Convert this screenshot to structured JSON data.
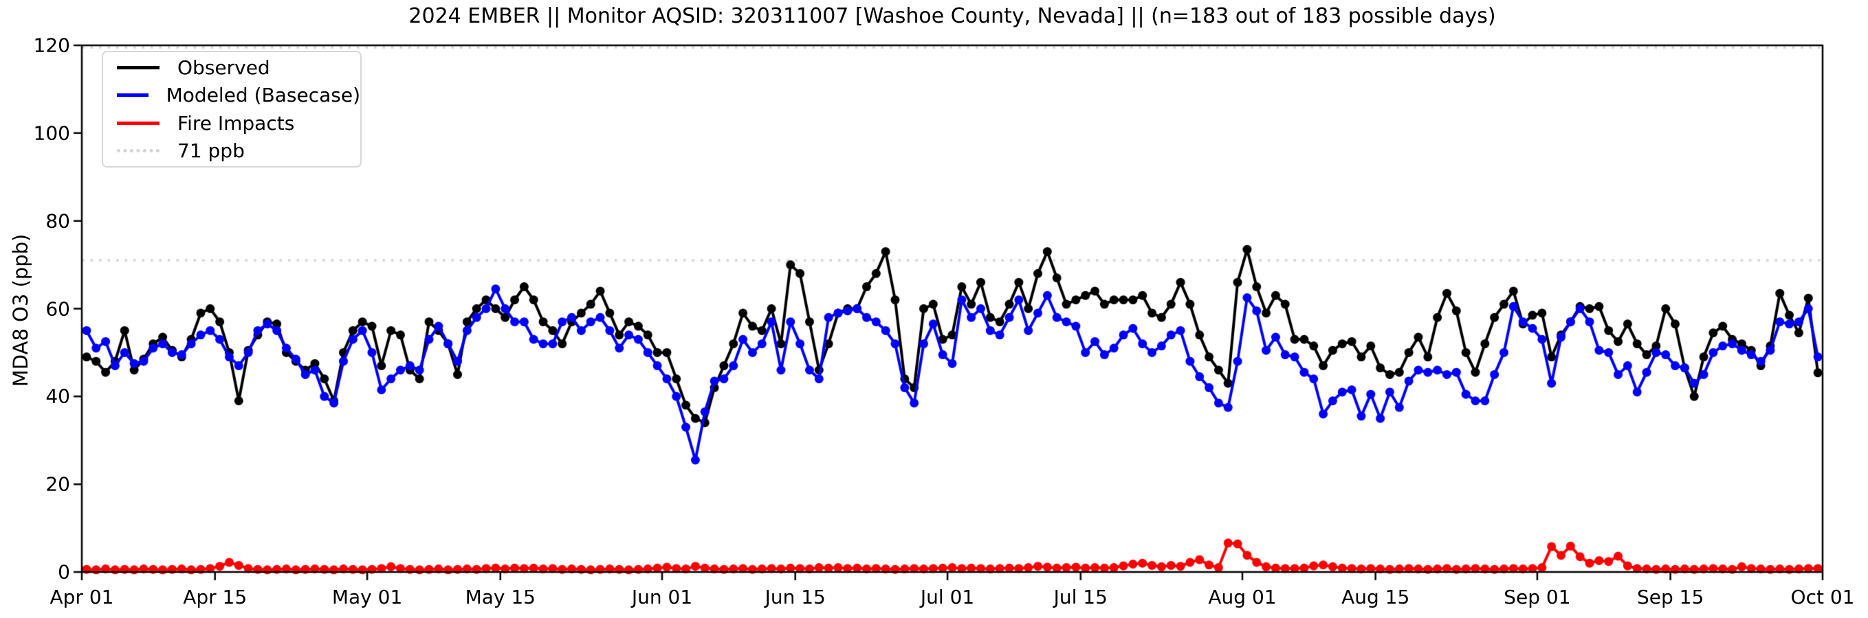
{
  "chart_data": {
    "type": "line",
    "title": "2024 EMBER || Monitor AQSID: 320311007 [Washoe County, Nevada] || (n=183 out of 183 possible days)",
    "ylabel": "MDA8 O3 (ppb)",
    "xlabel": "",
    "ylim": [
      0,
      120
    ],
    "n_days": 183,
    "x_range": [
      "Apr 01",
      "Oct 01"
    ],
    "grid": false,
    "y_ticks": [
      0,
      20,
      40,
      60,
      80,
      100,
      120
    ],
    "x_ticks": [
      {
        "day": 0,
        "label": "Apr 01"
      },
      {
        "day": 14,
        "label": "Apr 15"
      },
      {
        "day": 30,
        "label": "May 01"
      },
      {
        "day": 44,
        "label": "May 15"
      },
      {
        "day": 61,
        "label": "Jun 01"
      },
      {
        "day": 75,
        "label": "Jun 15"
      },
      {
        "day": 91,
        "label": "Jul 01"
      },
      {
        "day": 105,
        "label": "Jul 15"
      },
      {
        "day": 122,
        "label": "Aug 01"
      },
      {
        "day": 136,
        "label": "Aug 15"
      },
      {
        "day": 153,
        "label": "Sep 01"
      },
      {
        "day": 167,
        "label": "Sep 15"
      },
      {
        "day": 183,
        "label": "Oct 01"
      }
    ],
    "reference_lines": [
      {
        "value": 71,
        "label": "71 ppb",
        "color": "#d3d3d3",
        "style": "dotted"
      },
      {
        "value": 119.5,
        "label": "",
        "color": "#d3d3d3",
        "style": "dotted"
      }
    ],
    "series": [
      {
        "name": "Observed",
        "color": "#000000",
        "marker": "circle",
        "values": [
          49,
          48,
          45.5,
          48,
          55,
          46,
          48.5,
          52,
          53.5,
          50.5,
          49,
          53,
          59,
          60,
          57,
          50,
          39,
          50.5,
          54,
          57,
          56.5,
          50,
          48,
          46,
          47.5,
          44,
          39,
          50,
          55,
          57,
          56,
          47,
          55,
          54,
          46,
          44,
          57,
          55,
          52,
          45,
          57,
          60,
          62,
          60,
          58,
          62,
          65,
          62,
          57,
          55,
          52,
          57,
          59,
          61,
          64,
          59,
          54,
          57,
          56,
          54,
          50,
          50,
          44,
          38,
          35,
          34,
          42,
          47,
          52,
          59,
          56,
          55,
          60,
          52,
          70,
          68,
          57,
          46,
          52,
          59,
          60,
          60,
          65,
          68,
          73,
          62,
          44,
          42,
          60,
          61,
          53,
          54,
          65,
          61,
          66,
          58,
          57,
          61,
          66,
          60,
          68,
          73,
          67,
          61,
          62,
          63,
          64,
          61,
          62,
          62,
          62,
          63,
          59,
          58,
          61,
          66,
          61,
          54,
          49,
          46,
          43,
          66,
          73.5,
          65,
          59,
          63,
          61,
          53,
          53,
          51.5,
          47,
          50.5,
          52,
          52.5,
          49,
          51.5,
          46.5,
          45,
          45.5,
          50,
          53.5,
          49,
          58,
          63.5,
          59.5,
          50,
          45.5,
          52,
          58,
          61,
          64,
          56.5,
          58.5,
          59,
          49,
          54,
          57,
          60.5,
          60,
          60.5,
          55,
          52.5,
          56.5,
          52,
          49.5,
          51.5,
          60,
          56.5,
          46.5,
          40,
          49,
          54.5,
          56,
          53,
          52,
          50.5,
          47,
          51.5,
          63.5,
          58.5,
          54.5,
          62.4,
          45.4
        ]
      },
      {
        "name": "Modeled (Basecase)",
        "color": "#0000ff",
        "marker": "circle",
        "values": [
          55,
          51,
          52.5,
          47,
          50,
          47.5,
          48,
          51,
          52,
          50,
          49.5,
          52,
          54,
          55,
          53,
          49,
          47,
          50,
          55,
          56.5,
          55,
          51,
          48.5,
          45,
          46,
          40,
          38.5,
          48,
          53,
          55,
          50,
          41.5,
          44,
          46,
          47,
          46,
          53,
          56,
          52,
          48,
          55,
          58,
          60,
          64.5,
          60,
          57,
          57,
          53,
          52,
          52,
          57,
          58,
          55,
          57,
          58,
          55,
          51,
          54,
          53,
          50,
          47,
          44,
          40,
          33,
          25.5,
          36.5,
          43.5,
          44,
          47,
          53,
          50,
          52,
          57,
          46,
          57,
          52,
          46,
          44,
          58,
          59,
          59.5,
          60,
          58,
          57,
          55,
          52,
          42,
          38.5,
          52,
          56.5,
          49.5,
          47.5,
          62,
          58,
          60,
          55,
          54,
          58,
          62,
          55,
          59,
          63,
          58,
          57,
          56,
          50,
          52.5,
          49.5,
          51,
          54,
          55.5,
          52,
          50,
          51.5,
          54,
          55,
          48,
          44.5,
          42,
          38.5,
          37.5,
          48,
          62.5,
          59.5,
          50.5,
          53.5,
          49.5,
          49,
          45.5,
          44,
          36,
          39,
          41,
          41.5,
          35.5,
          40.5,
          35,
          41,
          37.5,
          43.5,
          46,
          45.5,
          46,
          45,
          45.5,
          40.5,
          39,
          39,
          45,
          50,
          60.5,
          57,
          55.5,
          53,
          43,
          53.5,
          57,
          60,
          57,
          50.5,
          50,
          45,
          47,
          41,
          45.5,
          50,
          49.5,
          47,
          46.5,
          43,
          45,
          50,
          51.5,
          52,
          50.5,
          49.5,
          48,
          50.5,
          57,
          56.5,
          57,
          60,
          49
        ]
      },
      {
        "name": "Fire Impacts",
        "color": "#ff0000",
        "marker": "circle",
        "values": [
          0.6,
          0.5,
          0.7,
          0.5,
          0.6,
          0.5,
          0.7,
          0.6,
          0.5,
          0.6,
          0.7,
          0.5,
          0.6,
          0.8,
          1.3,
          2.2,
          1.5,
          0.8,
          0.6,
          0.5,
          0.6,
          0.7,
          0.5,
          0.6,
          0.7,
          0.6,
          0.5,
          0.7,
          0.6,
          0.5,
          0.6,
          0.8,
          1.2,
          0.8,
          0.6,
          0.5,
          0.6,
          0.7,
          0.5,
          0.6,
          0.7,
          0.6,
          0.8,
          0.9,
          0.7,
          0.9,
          0.8,
          0.9,
          0.7,
          0.8,
          0.6,
          0.7,
          0.6,
          0.5,
          0.6,
          0.7,
          0.6,
          0.5,
          0.6,
          0.7,
          0.9,
          1.1,
          0.8,
          0.7,
          1.3,
          0.9,
          0.7,
          0.6,
          0.7,
          0.8,
          0.6,
          0.7,
          0.8,
          0.7,
          0.9,
          0.8,
          0.7,
          1.0,
          0.9,
          1.0,
          0.8,
          0.9,
          0.7,
          0.8,
          0.7,
          0.6,
          0.7,
          0.8,
          0.7,
          0.8,
          0.9,
          1.0,
          0.8,
          0.9,
          0.8,
          0.7,
          0.8,
          0.9,
          0.8,
          1.0,
          1.3,
          1.1,
          0.9,
          1.0,
          1.1,
          0.9,
          1.0,
          0.9,
          1.0,
          1.4,
          1.8,
          2.0,
          1.5,
          1.2,
          1.5,
          1.3,
          2.2,
          2.8,
          1.6,
          1.0,
          6.6,
          6.4,
          3.8,
          2.2,
          1.2,
          0.9,
          0.8,
          0.8,
          0.9,
          1.4,
          1.6,
          1.2,
          0.9,
          0.8,
          0.7,
          0.8,
          0.7,
          0.6,
          0.7,
          0.8,
          0.7,
          0.6,
          0.7,
          0.8,
          0.6,
          0.7,
          0.8,
          0.7,
          0.6,
          0.7,
          0.8,
          0.7,
          0.8,
          1.0,
          5.8,
          3.8,
          5.9,
          3.5,
          2.0,
          2.6,
          2.4,
          3.6,
          1.4,
          0.8,
          0.7,
          0.6,
          0.7,
          0.6,
          0.7,
          0.6,
          0.7,
          0.8,
          0.7,
          0.6,
          1.2,
          0.8,
          0.7,
          0.6,
          0.7,
          0.6,
          0.7,
          0.8,
          0.8
        ]
      }
    ],
    "legend": {
      "position": "upper-left",
      "items": [
        {
          "label": "Observed",
          "color": "#000000",
          "style": "solid"
        },
        {
          "label": "Modeled (Basecase)",
          "color": "#0000ff",
          "style": "solid"
        },
        {
          "label": "Fire Impacts",
          "color": "#ff0000",
          "style": "solid"
        },
        {
          "label": "71 ppb",
          "color": "#d3d3d3",
          "style": "dotted"
        }
      ]
    }
  }
}
